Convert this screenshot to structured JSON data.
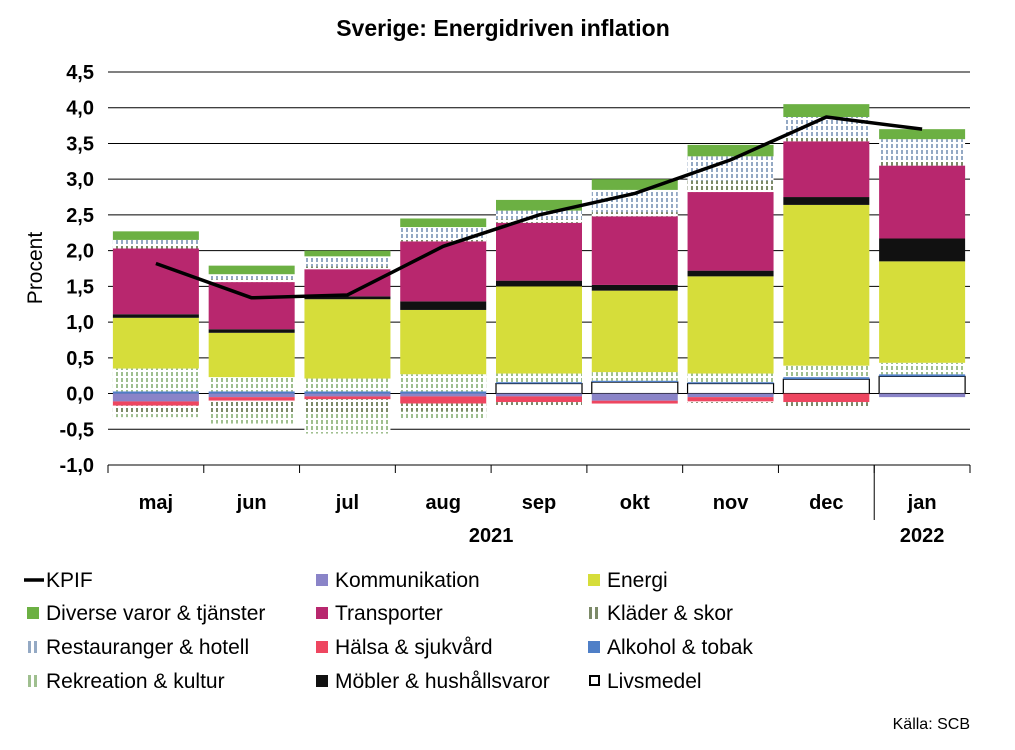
{
  "chart_data": {
    "type": "bar",
    "title": "Sverige: Energidriven inflation",
    "ylabel": "Procent",
    "source": "Källa: SCB",
    "ylim": [
      -1.0,
      4.5
    ],
    "yticks": [
      "4,5",
      "4,0",
      "3,5",
      "3,0",
      "2,5",
      "2,0",
      "1,5",
      "1,0",
      "0,5",
      "0,0",
      "-0,5",
      "-1,0"
    ],
    "ytick_values": [
      4.5,
      4.0,
      3.5,
      3.0,
      2.5,
      2.0,
      1.5,
      1.0,
      0.5,
      0.0,
      -0.5,
      -1.0
    ],
    "categories": [
      "maj",
      "jun",
      "jul",
      "aug",
      "sep",
      "okt",
      "nov",
      "dec",
      "jan"
    ],
    "year_labels": [
      {
        "label": "2021",
        "category": "aug",
        "shift": 0.5
      },
      {
        "label": "2022",
        "category": "jan",
        "shift": 0.0
      }
    ],
    "grid": true,
    "legend_position": "bottom",
    "colors": {
      "KPIF": "#000000",
      "Kommunikation": "#8a84c8",
      "Energi": "#d6dd3a",
      "Diverse varor & tjänster": "#6cb043",
      "Transporter": "#b8276e",
      "Kläder & skor": "#7c8a68",
      "Restauranger & hotell": "#94a9c4",
      "Hälsa & sjukvård": "#ee4660",
      "Alkohol & tobak": "#4f7fc7",
      "Rekreation & kultur": "#9fbf8f",
      "Möbler & hushållsvaror": "#111111",
      "Livsmedel": "#ffffff"
    },
    "legend": [
      {
        "name": "KPIF",
        "marker": "line"
      },
      {
        "name": "Kommunikation",
        "marker": "solid"
      },
      {
        "name": "Energi",
        "marker": "solid"
      },
      {
        "name": "Diverse varor & tjänster",
        "marker": "solid"
      },
      {
        "name": "Transporter",
        "marker": "solid"
      },
      {
        "name": "Kläder & skor",
        "marker": "stripe"
      },
      {
        "name": "Restauranger & hotell",
        "marker": "stripe"
      },
      {
        "name": "Hälsa & sjukvård",
        "marker": "solid"
      },
      {
        "name": "Alkohol & tobak",
        "marker": "solid"
      },
      {
        "name": "Rekreation & kultur",
        "marker": "stripe"
      },
      {
        "name": "Möbler & hushållsvaror",
        "marker": "solid"
      },
      {
        "name": "Livsmedel",
        "marker": "hollow"
      }
    ],
    "line": {
      "name": "KPIF",
      "values": [
        1.82,
        1.34,
        1.38,
        2.06,
        2.5,
        2.8,
        3.27,
        3.87,
        3.7
      ]
    },
    "series": [
      {
        "name": "Livsmedel",
        "pattern": "hollow",
        "values": [
          0.0,
          0.0,
          0.0,
          0.0,
          0.14,
          0.16,
          0.14,
          0.2,
          0.24
        ]
      },
      {
        "name": "Alkohol & tobak",
        "pattern": "solid",
        "values": [
          0.03,
          0.03,
          0.03,
          0.03,
          0.02,
          0.02,
          0.02,
          0.03,
          0.03
        ]
      },
      {
        "name": "Rekreation & kultur",
        "pattern": "stripe",
        "values": [
          0.32,
          0.2,
          0.18,
          0.24,
          0.12,
          0.12,
          0.12,
          0.16,
          0.16
        ]
      },
      {
        "name": "Energi",
        "pattern": "solid",
        "values": [
          0.71,
          0.62,
          1.11,
          0.9,
          1.22,
          1.14,
          1.36,
          2.25,
          1.42
        ]
      },
      {
        "name": "Möbler & hushållsvaror",
        "pattern": "solid",
        "values": [
          0.05,
          0.05,
          0.04,
          0.12,
          0.08,
          0.08,
          0.08,
          0.11,
          0.32
        ]
      },
      {
        "name": "Transporter",
        "pattern": "solid",
        "values": [
          0.92,
          0.66,
          0.38,
          0.84,
          0.81,
          0.96,
          1.1,
          0.78,
          1.02
        ]
      },
      {
        "name": "Kläder & skor",
        "pattern": "stripe",
        "values": [
          0.06,
          0.04,
          0.04,
          0.04,
          0.05,
          0.06,
          0.16,
          0.06,
          0.07
        ]
      },
      {
        "name": "Restauranger & hotell",
        "pattern": "stripe",
        "values": [
          0.06,
          0.07,
          0.14,
          0.16,
          0.12,
          0.31,
          0.34,
          0.28,
          0.3
        ]
      },
      {
        "name": "Diverse varor & tjänster",
        "pattern": "solid",
        "values": [
          0.12,
          0.12,
          0.08,
          0.12,
          0.15,
          0.15,
          0.16,
          0.18,
          0.14
        ]
      },
      {
        "name": "Kommunikation",
        "pattern": "solid",
        "values": [
          -0.11,
          -0.05,
          -0.04,
          -0.04,
          -0.04,
          -0.1,
          -0.05,
          0.0,
          -0.05
        ]
      },
      {
        "name": "Hälsa & sjukvård",
        "pattern": "solid",
        "values": [
          -0.06,
          -0.05,
          -0.04,
          -0.1,
          -0.08,
          -0.04,
          -0.06,
          -0.12,
          0.0
        ]
      },
      {
        "name": "Kläder & skor (neg)",
        "legend_ref": "Kläder & skor",
        "pattern": "stripe",
        "values": [
          -0.12,
          -0.18,
          -0.18,
          -0.11,
          -0.04,
          0.0,
          -0.02,
          -0.06,
          0.0
        ]
      },
      {
        "name": "Rekreation & kultur (neg)",
        "legend_ref": "Rekreation & kultur",
        "pattern": "stripe",
        "values": [
          -0.04,
          -0.14,
          -0.3,
          -0.11,
          0.0,
          0.0,
          0.0,
          0.0,
          0.0
        ]
      }
    ]
  }
}
